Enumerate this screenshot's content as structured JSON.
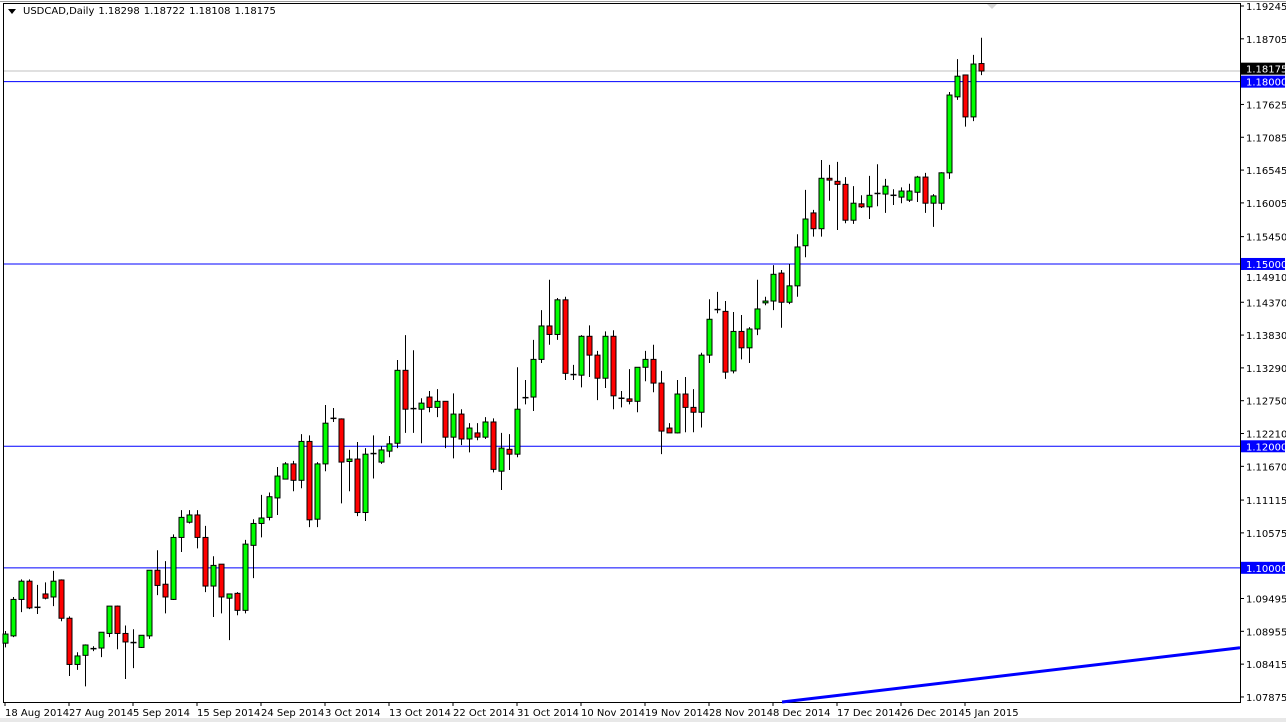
{
  "header": {
    "symbol_timeframe": "USDCAD,Daily",
    "open": "1.18298",
    "high": "1.18722",
    "low": "1.18108",
    "close": "1.18175"
  },
  "chart_data": {
    "type": "candlestick",
    "symbol": "USDCAD",
    "timeframe": "Daily",
    "ylim": [
      1.07792,
      1.19245
    ],
    "grid": false,
    "colors": {
      "bull": "#00ff00",
      "bear": "#ff0000",
      "outline": "#000000",
      "level_line": "#0000ff",
      "bid_line": "#c0c0c0",
      "bid_box": "#000000",
      "trendline": "#0000ff"
    },
    "y_ticks": [
      "1.19245",
      "1.18705",
      "1.17625",
      "1.17085",
      "1.16545",
      "1.16005",
      "1.15450",
      "1.14910",
      "1.14370",
      "1.13830",
      "1.13290",
      "1.12750",
      "1.12210",
      "1.11670",
      "1.11115",
      "1.10575",
      "1.09495",
      "1.08955",
      "1.08415",
      "1.07875"
    ],
    "x_ticks": [
      {
        "date": "2014-08-18",
        "label": "18 Aug 2014"
      },
      {
        "date": "2014-08-27",
        "label": "27 Aug 2014"
      },
      {
        "date": "2014-09-05",
        "label": "5 Sep 2014"
      },
      {
        "date": "2014-09-15",
        "label": "15 Sep 2014"
      },
      {
        "date": "2014-09-24",
        "label": "24 Sep 2014"
      },
      {
        "date": "2014-10-03",
        "label": "3 Oct 2014"
      },
      {
        "date": "2014-10-13",
        "label": "13 Oct 2014"
      },
      {
        "date": "2014-10-22",
        "label": "22 Oct 2014"
      },
      {
        "date": "2014-10-31",
        "label": "31 Oct 2014"
      },
      {
        "date": "2014-11-10",
        "label": "10 Nov 2014"
      },
      {
        "date": "2014-11-19",
        "label": "19 Nov 2014"
      },
      {
        "date": "2014-11-28",
        "label": "28 Nov 2014"
      },
      {
        "date": "2014-12-08",
        "label": "8 Dec 2014"
      },
      {
        "date": "2014-12-17",
        "label": "17 Dec 2014"
      },
      {
        "date": "2014-12-26",
        "label": "26 Dec 2014"
      },
      {
        "date": "2015-01-05",
        "label": "5 Jan 2015"
      }
    ],
    "horizontal_lines": [
      {
        "price": 1.18,
        "label": "1.18000"
      },
      {
        "price": 1.15,
        "label": "1.15000"
      },
      {
        "price": 1.12,
        "label": "1.12000"
      },
      {
        "price": 1.1,
        "label": "1.10000"
      }
    ],
    "bid_line": {
      "price": 1.18175,
      "label": "1.18175"
    },
    "trendline": {
      "points": [
        {
          "date": "2014-12-09",
          "price": 1.0779
        },
        {
          "date": "2015-01-07",
          "price": 1.0818
        }
      ],
      "extend": "right"
    },
    "candles_format": [
      "date",
      "open",
      "high",
      "low",
      "close"
    ],
    "candles": [
      [
        "2014-08-18",
        1.0876,
        1.0896,
        1.0869,
        1.0891
      ],
      [
        "2014-08-19",
        1.0888,
        1.0952,
        1.0886,
        1.0948
      ],
      [
        "2014-08-20",
        1.0948,
        1.0981,
        1.0927,
        1.0978
      ],
      [
        "2014-08-21",
        1.0978,
        1.0981,
        1.0932,
        1.0934
      ],
      [
        "2014-08-22",
        1.0934,
        1.0972,
        1.0924,
        1.0935
      ],
      [
        "2014-08-24",
        1.0957,
        1.0976,
        1.0948,
        1.095
      ],
      [
        "2014-08-25",
        1.0952,
        1.0995,
        1.0937,
        1.0978
      ],
      [
        "2014-08-26",
        1.098,
        1.0981,
        1.0912,
        1.0917
      ],
      [
        "2014-08-27",
        1.0917,
        1.092,
        1.0822,
        1.0841
      ],
      [
        "2014-08-28",
        1.0841,
        1.0861,
        1.0832,
        1.0855
      ],
      [
        "2014-08-29",
        1.0856,
        1.0874,
        1.0805,
        1.0873
      ],
      [
        "2014-08-31",
        1.0866,
        1.0871,
        1.0863,
        1.0867
      ],
      [
        "2014-09-01",
        1.0868,
        1.0894,
        1.0853,
        1.0894
      ],
      [
        "2014-09-02",
        1.0892,
        1.0937,
        1.0886,
        1.0937
      ],
      [
        "2014-09-03",
        1.0937,
        1.0938,
        1.0866,
        1.0892
      ],
      [
        "2014-09-04",
        1.0892,
        1.0905,
        1.0817,
        1.0878
      ],
      [
        "2014-09-05",
        1.0876,
        1.0899,
        1.0835,
        1.0877
      ],
      [
        "2014-09-07",
        1.0869,
        1.0889,
        1.0868,
        1.0889
      ],
      [
        "2014-09-08",
        1.0888,
        1.0996,
        1.0883,
        1.0996
      ],
      [
        "2014-09-09",
        1.0996,
        1.1029,
        1.0955,
        1.0971
      ],
      [
        "2014-09-10",
        1.0973,
        1.1011,
        1.0925,
        1.0952
      ],
      [
        "2014-09-11",
        1.0948,
        1.1055,
        1.0947,
        1.105
      ],
      [
        "2014-09-12",
        1.105,
        1.1095,
        1.1026,
        1.1083
      ],
      [
        "2014-09-14",
        1.1075,
        1.1095,
        1.1073,
        1.1087
      ],
      [
        "2014-09-15",
        1.1087,
        1.1095,
        1.1032,
        1.105
      ],
      [
        "2014-09-16",
        1.105,
        1.1069,
        1.096,
        1.097
      ],
      [
        "2014-09-17",
        1.097,
        1.1019,
        1.0919,
        1.1004
      ],
      [
        "2014-09-18",
        1.1006,
        1.1006,
        1.0925,
        1.0952
      ],
      [
        "2014-09-19",
        1.095,
        1.0957,
        1.0881,
        1.0957
      ],
      [
        "2014-09-21",
        1.0958,
        1.096,
        1.0922,
        1.093
      ],
      [
        "2014-09-22",
        1.093,
        1.1046,
        1.0925,
        1.1039
      ],
      [
        "2014-09-23",
        1.1037,
        1.108,
        1.0983,
        1.1073
      ],
      [
        "2014-09-24",
        1.1073,
        1.112,
        1.105,
        1.1082
      ],
      [
        "2014-09-25",
        1.1083,
        1.1124,
        1.1078,
        1.1117
      ],
      [
        "2014-09-26",
        1.1115,
        1.1166,
        1.1087,
        1.1151
      ],
      [
        "2014-09-28",
        1.1146,
        1.1174,
        1.1146,
        1.1171
      ],
      [
        "2014-09-29",
        1.1171,
        1.1176,
        1.1126,
        1.1144
      ],
      [
        "2014-09-30",
        1.1144,
        1.122,
        1.1131,
        1.1208
      ],
      [
        "2014-10-01",
        1.1208,
        1.1218,
        1.1067,
        1.1079
      ],
      [
        "2014-10-02",
        1.108,
        1.1174,
        1.1067,
        1.1171
      ],
      [
        "2014-10-03",
        1.1171,
        1.1268,
        1.1159,
        1.1238
      ],
      [
        "2014-10-05",
        1.1245,
        1.1263,
        1.124,
        1.1246
      ],
      [
        "2014-10-06",
        1.1245,
        1.1246,
        1.1106,
        1.1174
      ],
      [
        "2014-10-07",
        1.1175,
        1.1194,
        1.1126,
        1.1179
      ],
      [
        "2014-10-08",
        1.1179,
        1.1207,
        1.1085,
        1.1091
      ],
      [
        "2014-10-09",
        1.1091,
        1.1197,
        1.1077,
        1.1187
      ],
      [
        "2014-10-10",
        1.1187,
        1.1218,
        1.1147,
        1.1188
      ],
      [
        "2014-10-12",
        1.1174,
        1.12,
        1.1171,
        1.1194
      ],
      [
        "2014-10-13",
        1.1192,
        1.1217,
        1.1182,
        1.1204
      ],
      [
        "2014-10-14",
        1.1205,
        1.1342,
        1.1197,
        1.1325
      ],
      [
        "2014-10-15",
        1.1325,
        1.1383,
        1.1222,
        1.1261
      ],
      [
        "2014-10-16",
        1.1261,
        1.1358,
        1.1222,
        1.1262
      ],
      [
        "2014-10-17",
        1.1261,
        1.1279,
        1.1205,
        1.1271
      ],
      [
        "2014-10-19",
        1.1281,
        1.1291,
        1.1256,
        1.1264
      ],
      [
        "2014-10-20",
        1.1264,
        1.1294,
        1.1248,
        1.1274
      ],
      [
        "2014-10-21",
        1.1274,
        1.1274,
        1.1197,
        1.1215
      ],
      [
        "2014-10-22",
        1.1215,
        1.1287,
        1.118,
        1.1253
      ],
      [
        "2014-10-23",
        1.1253,
        1.1261,
        1.1202,
        1.1212
      ],
      [
        "2014-10-24",
        1.1212,
        1.1238,
        1.119,
        1.123
      ],
      [
        "2014-10-26",
        1.1222,
        1.1238,
        1.121,
        1.1215
      ],
      [
        "2014-10-27",
        1.1215,
        1.1248,
        1.1212,
        1.124
      ],
      [
        "2014-10-28",
        1.124,
        1.1246,
        1.1157,
        1.1162
      ],
      [
        "2014-10-29",
        1.1159,
        1.1222,
        1.1128,
        1.1197
      ],
      [
        "2014-10-30",
        1.1195,
        1.122,
        1.1161,
        1.1187
      ],
      [
        "2014-10-31",
        1.1187,
        1.133,
        1.1182,
        1.1261
      ],
      [
        "2014-11-02",
        1.1279,
        1.1309,
        1.1269,
        1.128
      ],
      [
        "2014-11-03",
        1.1281,
        1.1375,
        1.1258,
        1.1343
      ],
      [
        "2014-11-04",
        1.1343,
        1.1424,
        1.1337,
        1.1398
      ],
      [
        "2014-11-05",
        1.1398,
        1.1474,
        1.1367,
        1.1384
      ],
      [
        "2014-11-06",
        1.1384,
        1.1444,
        1.1375,
        1.1441
      ],
      [
        "2014-11-07",
        1.1441,
        1.1446,
        1.1309,
        1.132
      ],
      [
        "2014-11-09",
        1.1317,
        1.1334,
        1.1309,
        1.1318
      ],
      [
        "2014-11-10",
        1.1317,
        1.1383,
        1.1297,
        1.1381
      ],
      [
        "2014-11-11",
        1.1381,
        1.1399,
        1.1314,
        1.135
      ],
      [
        "2014-11-12",
        1.135,
        1.1357,
        1.1276,
        1.1312
      ],
      [
        "2014-11-13",
        1.1312,
        1.1389,
        1.1296,
        1.1381
      ],
      [
        "2014-11-14",
        1.1381,
        1.1391,
        1.1261,
        1.1283
      ],
      [
        "2014-11-16",
        1.1278,
        1.1291,
        1.1264,
        1.1279
      ],
      [
        "2014-11-17",
        1.1278,
        1.1327,
        1.1269,
        1.1274
      ],
      [
        "2014-11-18",
        1.1274,
        1.133,
        1.1256,
        1.133
      ],
      [
        "2014-11-19",
        1.133,
        1.1357,
        1.1307,
        1.1343
      ],
      [
        "2014-11-20",
        1.1343,
        1.1367,
        1.1289,
        1.1304
      ],
      [
        "2014-11-21",
        1.1304,
        1.1324,
        1.1187,
        1.1225
      ],
      [
        "2014-11-23",
        1.123,
        1.1238,
        1.1222,
        1.1222
      ],
      [
        "2014-11-24",
        1.1222,
        1.1309,
        1.1221,
        1.1286
      ],
      [
        "2014-11-25",
        1.1286,
        1.1314,
        1.1223,
        1.1264
      ],
      [
        "2014-11-26",
        1.1264,
        1.1294,
        1.1223,
        1.1256
      ],
      [
        "2014-11-27",
        1.1256,
        1.1354,
        1.1231,
        1.135
      ],
      [
        "2014-11-28",
        1.135,
        1.1442,
        1.1337,
        1.1409
      ],
      [
        "2014-11-30",
        1.1424,
        1.1454,
        1.1419,
        1.1425
      ],
      [
        "2014-12-01",
        1.1422,
        1.1439,
        1.1311,
        1.1322
      ],
      [
        "2014-12-02",
        1.1324,
        1.1421,
        1.132,
        1.1389
      ],
      [
        "2014-12-03",
        1.1389,
        1.1416,
        1.1343,
        1.1362
      ],
      [
        "2014-12-04",
        1.1362,
        1.1396,
        1.1337,
        1.1393
      ],
      [
        "2014-12-05",
        1.1393,
        1.1474,
        1.1383,
        1.1426
      ],
      [
        "2014-12-07",
        1.1436,
        1.1446,
        1.1432,
        1.1439
      ],
      [
        "2014-12-08",
        1.1439,
        1.1498,
        1.1424,
        1.1483
      ],
      [
        "2014-12-09",
        1.1485,
        1.149,
        1.1395,
        1.1437
      ],
      [
        "2014-12-10",
        1.1437,
        1.15,
        1.1434,
        1.1464
      ],
      [
        "2014-12-11",
        1.1464,
        1.1549,
        1.1446,
        1.1528
      ],
      [
        "2014-12-12",
        1.153,
        1.1622,
        1.1511,
        1.1574
      ],
      [
        "2014-12-14",
        1.1584,
        1.1589,
        1.1545,
        1.1558
      ],
      [
        "2014-12-15",
        1.1558,
        1.1671,
        1.1545,
        1.1641
      ],
      [
        "2014-12-16",
        1.1641,
        1.1663,
        1.1604,
        1.1638
      ],
      [
        "2014-12-17",
        1.1636,
        1.1668,
        1.1556,
        1.1631
      ],
      [
        "2014-12-18",
        1.1631,
        1.1643,
        1.1567,
        1.1572
      ],
      [
        "2014-12-19",
        1.1572,
        1.1628,
        1.1566,
        1.16
      ],
      [
        "2014-12-21",
        1.1599,
        1.1613,
        1.1592,
        1.1594
      ],
      [
        "2014-12-22",
        1.1594,
        1.1645,
        1.1574,
        1.1613
      ],
      [
        "2014-12-23",
        1.1615,
        1.1664,
        1.1595,
        1.1616
      ],
      [
        "2014-12-24",
        1.1615,
        1.164,
        1.1584,
        1.1628
      ],
      [
        "2014-12-25",
        1.1612,
        1.1623,
        1.1597,
        1.1613
      ],
      [
        "2014-12-26",
        1.161,
        1.1626,
        1.16,
        1.162
      ],
      [
        "2014-12-28",
        1.1605,
        1.1632,
        1.1602,
        1.162
      ],
      [
        "2014-12-29",
        1.1618,
        1.1645,
        1.1602,
        1.1643
      ],
      [
        "2014-12-30",
        1.1643,
        1.165,
        1.1584,
        1.16
      ],
      [
        "2014-12-31",
        1.16,
        1.1615,
        1.1561,
        1.1612
      ],
      [
        "2015-01-01",
        1.16,
        1.1651,
        1.1589,
        1.165
      ],
      [
        "2015-01-02",
        1.165,
        1.1783,
        1.164,
        1.1778
      ],
      [
        "2015-01-04",
        1.1775,
        1.1837,
        1.177,
        1.1809
      ],
      [
        "2015-01-05",
        1.1811,
        1.1811,
        1.1726,
        1.1742
      ],
      [
        "2015-01-06",
        1.1742,
        1.1844,
        1.1735,
        1.1829
      ],
      [
        "2015-01-07",
        1.18298,
        1.18722,
        1.18108,
        1.18175
      ]
    ]
  }
}
